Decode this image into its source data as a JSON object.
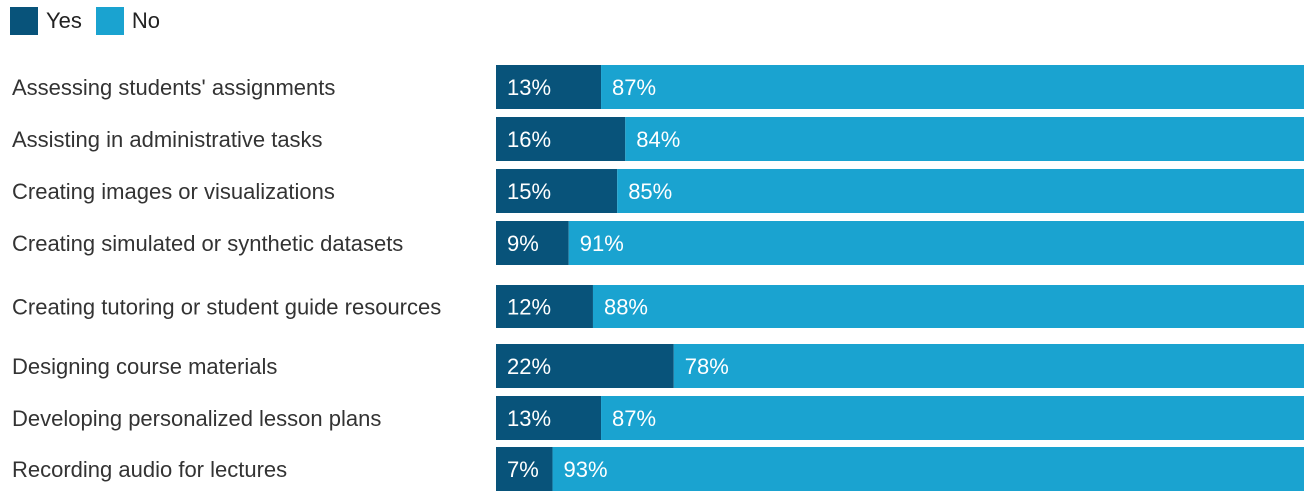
{
  "chart_data": {
    "type": "bar",
    "orientation": "horizontal",
    "stacked": true,
    "normalized_percent": true,
    "legend_position": "top-left",
    "grid": false,
    "categories": [
      "Assessing students' assignments",
      "Assisting in administrative tasks",
      "Creating images or visualizations",
      "Creating simulated or synthetic datasets",
      "Creating tutoring or student guide resources",
      "Designing course materials",
      "Developing personalized lesson plans",
      "Recording audio for lectures"
    ],
    "series": [
      {
        "name": "Yes",
        "color": "#08537a",
        "values": [
          13,
          16,
          15,
          9,
          12,
          22,
          13,
          7
        ]
      },
      {
        "name": "No",
        "color": "#1aa3d0",
        "values": [
          87,
          84,
          85,
          91,
          88,
          78,
          87,
          93
        ]
      }
    ],
    "value_suffix": "%"
  }
}
